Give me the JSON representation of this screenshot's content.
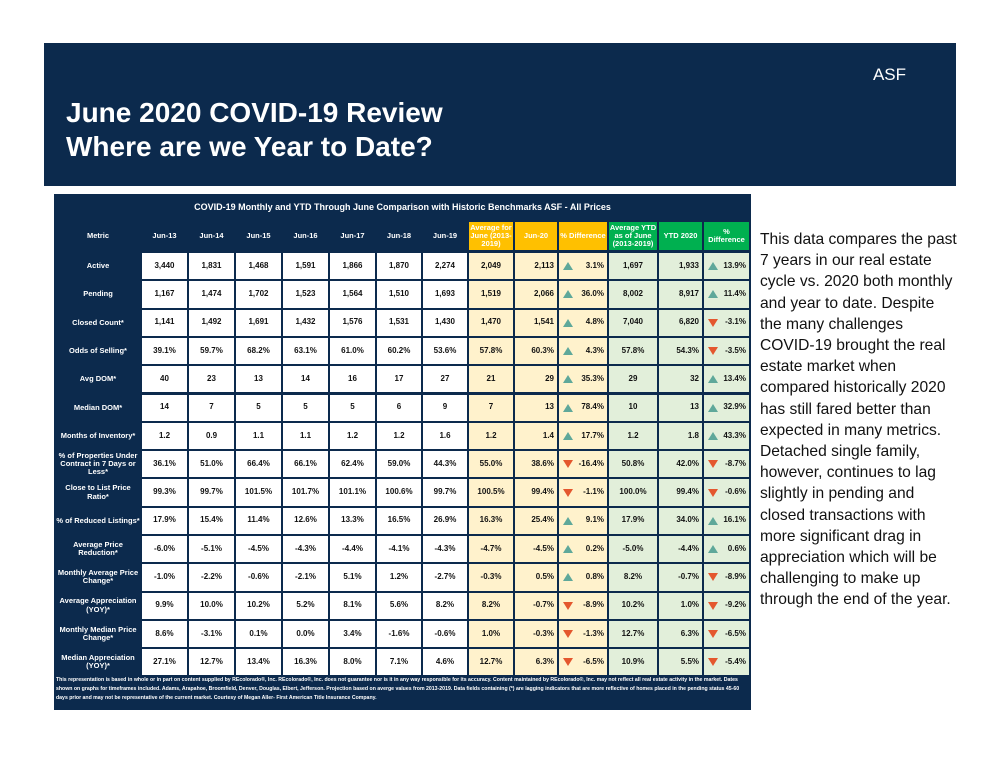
{
  "header": {
    "tag": "ASF",
    "title": [
      "June 2020 COVID-19 Review",
      "Where are we Year to Date?"
    ]
  },
  "table": {
    "title": "COVID-19 Monthly and YTD  Through June Comparison with  Historic Benchmarks  ASF - All Prices",
    "columns": [
      "Metric",
      "Jun-13",
      "Jun-14",
      "Jun-15",
      "Jun-16",
      "Jun-17",
      "Jun-18",
      "Jun-19",
      "Average for June (2013-2019)",
      "Jun-20",
      "% Difference",
      "Average YTD as of June (2013-2019)",
      "YTD 2020",
      "% Difference"
    ],
    "rows": [
      [
        "Active",
        "3,440",
        "1,831",
        "1,468",
        "1,591",
        "1,866",
        "1,870",
        "2,274",
        "2,049",
        "2,113",
        "3.1%",
        "1,697",
        "1,933",
        "13.9%"
      ],
      [
        "Pending",
        "1,167",
        "1,474",
        "1,702",
        "1,523",
        "1,564",
        "1,510",
        "1,693",
        "1,519",
        "2,066",
        "36.0%",
        "8,002",
        "8,917",
        "11.4%"
      ],
      [
        "Closed Count*",
        "1,141",
        "1,492",
        "1,691",
        "1,432",
        "1,576",
        "1,531",
        "1,430",
        "1,470",
        "1,541",
        "4.8%",
        "7,040",
        "6,820",
        "-3.1%"
      ],
      [
        "Odds of Selling*",
        "39.1%",
        "59.7%",
        "68.2%",
        "63.1%",
        "61.0%",
        "60.2%",
        "53.6%",
        "57.8%",
        "60.3%",
        "4.3%",
        "57.8%",
        "54.3%",
        "-3.5%"
      ],
      [
        "Avg DOM*",
        "40",
        "23",
        "13",
        "14",
        "16",
        "17",
        "27",
        "21",
        "29",
        "35.3%",
        "29",
        "32",
        "13.4%"
      ],
      [
        "Median DOM*",
        "14",
        "7",
        "5",
        "5",
        "5",
        "6",
        "9",
        "7",
        "13",
        "78.4%",
        "10",
        "13",
        "32.9%"
      ],
      [
        "Months of Inventory*",
        "1.2",
        "0.9",
        "1.1",
        "1.1",
        "1.2",
        "1.2",
        "1.6",
        "1.2",
        "1.4",
        "17.7%",
        "1.2",
        "1.8",
        "43.3%"
      ],
      [
        "% of Properties Under Contract in 7 Days or Less*",
        "36.1%",
        "51.0%",
        "66.4%",
        "66.1%",
        "62.4%",
        "59.0%",
        "44.3%",
        "55.0%",
        "38.6%",
        "-16.4%",
        "50.8%",
        "42.0%",
        "-8.7%"
      ],
      [
        "Close to List Price Ratio*",
        "99.3%",
        "99.7%",
        "101.5%",
        "101.7%",
        "101.1%",
        "100.6%",
        "99.7%",
        "100.5%",
        "99.4%",
        "-1.1%",
        "100.0%",
        "99.4%",
        "-0.6%"
      ],
      [
        "% of Reduced Listings*",
        "17.9%",
        "15.4%",
        "11.4%",
        "12.6%",
        "13.3%",
        "16.5%",
        "26.9%",
        "16.3%",
        "25.4%",
        "9.1%",
        "17.9%",
        "34.0%",
        "16.1%"
      ],
      [
        "Average Price Reduction*",
        "-6.0%",
        "-5.1%",
        "-4.5%",
        "-4.3%",
        "-4.4%",
        "-4.1%",
        "-4.3%",
        "-4.7%",
        "-4.5%",
        "0.2%",
        "-5.0%",
        "-4.4%",
        "0.6%"
      ],
      [
        "Monthly Average Price Change*",
        "-1.0%",
        "-2.2%",
        "-0.6%",
        "-2.1%",
        "5.1%",
        "1.2%",
        "-2.7%",
        "-0.3%",
        "0.5%",
        "0.8%",
        "8.2%",
        "-0.7%",
        "-8.9%"
      ],
      [
        "Average Appreciation (YOY)*",
        "9.9%",
        "10.0%",
        "10.2%",
        "5.2%",
        "8.1%",
        "5.6%",
        "8.2%",
        "8.2%",
        "-0.7%",
        "-8.9%",
        "10.2%",
        "1.0%",
        "-9.2%"
      ],
      [
        "Monthly Median Price Change*",
        "8.6%",
        "-3.1%",
        "0.1%",
        "0.0%",
        "3.4%",
        "-1.6%",
        "-0.6%",
        "1.0%",
        "-0.3%",
        "-1.3%",
        "12.7%",
        "6.3%",
        "-6.5%"
      ],
      [
        "Median Appreciation (YOY)*",
        "27.1%",
        "12.7%",
        "13.4%",
        "16.3%",
        "8.0%",
        "7.1%",
        "4.6%",
        "12.7%",
        "6.3%",
        "-6.5%",
        "10.9%",
        "5.5%",
        "-5.4%"
      ]
    ]
  },
  "footnote": "This representation is based in whole or in part on content supplied by REcolorado®, Inc. REcolorado®, Inc. does not guarantee nor is it in any way responsible for its accuracy. Content maintained by REcolorado®, Inc. may not reflect all real estate activity in the market. Dates shown on graphs for timeframes included.  Adams, Arapahoe, Broomfield, Denver, Douglas, Elbert, Jefferson. Projection based on averge values from 2013-2019. Data fields containing (*) are lagging indicators that are more reflective of homes placed in the pending status 45-60 days prior and may not be representative of the current market. Courtesy of Megan Aller- First American Title Insurance Company.",
  "commentary": "This data compares the past 7 years in our real estate cycle vs. 2020 both monthly and year to date. Despite the many challenges COVID-19 brought the real estate market when compared historically 2020 has still fared better than expected in many metrics. Detached single family, however, continues to lag slightly in pending and closed transactions with more significant drag in appreciation which will be challenging to make up through the end of the year."
}
